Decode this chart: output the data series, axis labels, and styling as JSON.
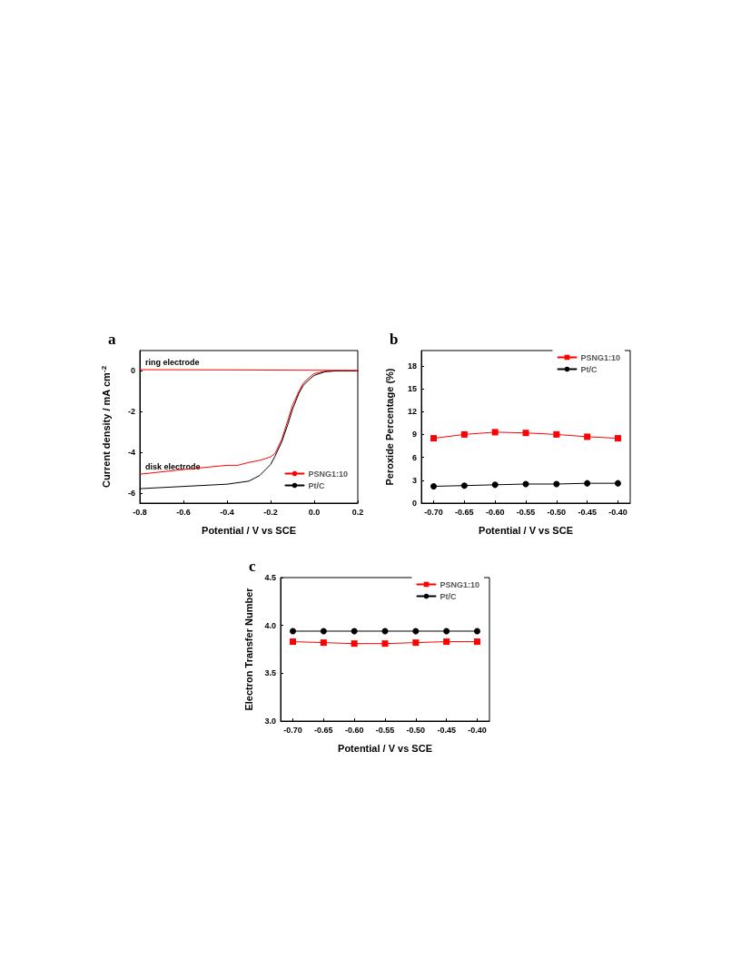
{
  "chart_data": [
    {
      "type": "line",
      "title": "a",
      "xlabel": "Potential / V vs SCE",
      "ylabel": "Current density / mA cm$^{-2}$",
      "xlim": [
        -0.8,
        0.2
      ],
      "xticks": [
        -0.8,
        -0.6,
        -0.4,
        -0.2,
        {
          "value": 0,
          "label": "0.0"
        },
        0.2
      ],
      "ylim": [
        -6.5,
        1
      ],
      "yticks": [
        -6,
        -4,
        -2,
        0
      ],
      "marker": "none",
      "legend": "bottom right",
      "grid": false,
      "annotations": [
        {
          "text": "ring electrode",
          "x": -0.8,
          "y": 0.06
        },
        {
          "text": "disk electrode",
          "x": -0.8,
          "y": -5.08
        }
      ],
      "series": [
        {
          "name": "PSNG1:10",
          "color": "#ff0000",
          "x": [
            -0.8,
            -0.6,
            -0.4,
            -0.35,
            -0.3,
            -0.25,
            -0.2,
            -0.18,
            -0.15,
            -0.12,
            -0.1,
            -0.07,
            -0.05,
            -0.02,
            0,
            0.05,
            0.1,
            0.2
          ],
          "values": [
            -5.08,
            -4.85,
            -4.64,
            -4.64,
            -4.5,
            -4.4,
            -4.23,
            -4.06,
            -3.4,
            -2.4,
            -1.7,
            -1.0,
            -0.6,
            -0.3,
            -0.13,
            -0.02,
            0,
            0
          ]
        },
        {
          "name": "Pt/C",
          "color": "#000000",
          "x": [
            -0.8,
            -0.6,
            -0.4,
            -0.3,
            -0.25,
            -0.2,
            -0.18,
            -0.15,
            -0.12,
            -0.1,
            -0.07,
            -0.05,
            -0.02,
            0,
            0.05,
            0.1,
            0.2
          ],
          "values": [
            -5.79,
            -5.68,
            -5.57,
            -5.42,
            -5.14,
            -4.6,
            -4.2,
            -3.52,
            -2.6,
            -1.9,
            -1.1,
            -0.71,
            -0.4,
            -0.22,
            -0.04,
            0,
            0
          ]
        },
        {
          "color": "#ff0000",
          "x": [
            -0.8,
            -0.4,
            0,
            0.2
          ],
          "values": [
            0.06,
            0.05,
            0.03,
            0.02
          ]
        }
      ]
    },
    {
      "type": "line",
      "title": "b",
      "xlabel": "Potential / V vs SCE",
      "ylabel": "Peroxide Percentage (%)",
      "xlim": [
        -0.72,
        -0.38
      ],
      "xticks": [
        {
          "value": -0.7,
          "label": "-0.70"
        },
        {
          "value": -0.65,
          "label": "-0.65"
        },
        {
          "value": -0.6,
          "label": "-0.60"
        },
        {
          "value": -0.55,
          "label": "-0.55"
        },
        {
          "value": -0.5,
          "label": "-0.50"
        },
        {
          "value": -0.45,
          "label": "-0.45"
        },
        {
          "value": -0.4,
          "label": "-0.40"
        }
      ],
      "ylim": [
        0,
        20
      ],
      "yticks": [
        0,
        3,
        6,
        9,
        12,
        15,
        18
      ],
      "legend": "top right",
      "grid": false,
      "series": [
        {
          "name": "PSNG1:10",
          "color": "#ff0000",
          "marker": "square",
          "x": [
            -0.7,
            -0.65,
            -0.6,
            -0.55,
            -0.5,
            -0.45,
            -0.4
          ],
          "values": [
            8.5,
            9.0,
            9.3,
            9.2,
            9.0,
            8.7,
            8.5
          ]
        },
        {
          "name": "Pt/C",
          "color": "#000000",
          "marker": "circle",
          "x": [
            -0.7,
            -0.65,
            -0.6,
            -0.55,
            -0.5,
            -0.45,
            -0.4
          ],
          "values": [
            2.2,
            2.3,
            2.4,
            2.5,
            2.5,
            2.6,
            2.6
          ]
        }
      ]
    },
    {
      "type": "line",
      "title": "c",
      "xlabel": "Potential / V vs SCE",
      "ylabel": "Electron Transfer Number",
      "xlim": [
        -0.72,
        -0.38
      ],
      "xticks": [
        {
          "value": -0.7,
          "label": "-0.70"
        },
        {
          "value": -0.65,
          "label": "-0.65"
        },
        {
          "value": -0.6,
          "label": "-0.60"
        },
        {
          "value": -0.55,
          "label": "-0.55"
        },
        {
          "value": -0.5,
          "label": "-0.50"
        },
        {
          "value": -0.45,
          "label": "-0.45"
        },
        {
          "value": -0.4,
          "label": "-0.40"
        }
      ],
      "ylim": [
        3,
        4.5
      ],
      "yticks": [
        {
          "value": 3,
          "label": "3.0"
        },
        {
          "value": 3.5,
          "label": "3.5"
        },
        {
          "value": 4,
          "label": "4.0"
        },
        {
          "value": 4.5,
          "label": "4.5"
        }
      ],
      "legend": "top right",
      "grid": false,
      "series": [
        {
          "name": "PSNG1:10",
          "color": "#ff0000",
          "marker": "square",
          "x": [
            -0.7,
            -0.65,
            -0.6,
            -0.55,
            -0.5,
            -0.45,
            -0.4
          ],
          "values": [
            3.83,
            3.82,
            3.81,
            3.81,
            3.82,
            3.83,
            3.83
          ]
        },
        {
          "name": "Pt/C",
          "color": "#000000",
          "marker": "circle",
          "x": [
            -0.7,
            -0.65,
            -0.6,
            -0.55,
            -0.5,
            -0.45,
            -0.4
          ],
          "values": [
            3.94,
            3.94,
            3.94,
            3.94,
            3.94,
            3.94,
            3.94
          ]
        }
      ]
    }
  ]
}
